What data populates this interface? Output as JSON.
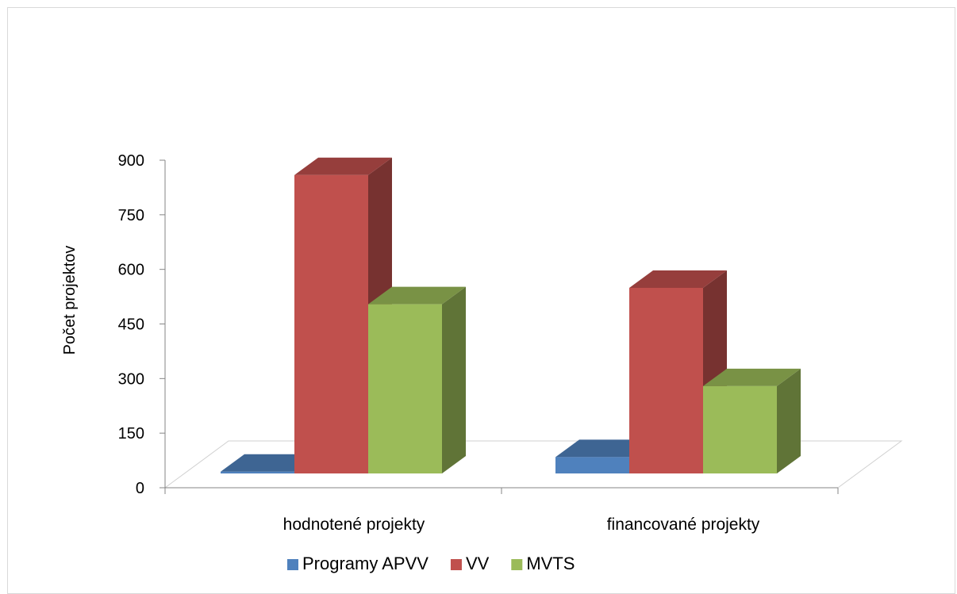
{
  "chart_data": {
    "type": "bar",
    "style": "3d-clustered-column",
    "ylabel": "Počet projektov",
    "ylim": [
      0,
      900
    ],
    "yticks": [
      "0",
      "150",
      "300",
      "450",
      "600",
      "750",
      "900"
    ],
    "categories": [
      "hodnotené projekty",
      "financované projekty"
    ],
    "series": [
      {
        "name": "Programy APVV",
        "values": [
          5,
          45
        ],
        "color": "#4F81BD"
      },
      {
        "name": "VV",
        "values": [
          820,
          510
        ],
        "color": "#C0504D"
      },
      {
        "name": "MVTS",
        "values": [
          465,
          240
        ],
        "color": "#9BBB59"
      }
    ],
    "legend_position": "bottom",
    "grid": false
  }
}
